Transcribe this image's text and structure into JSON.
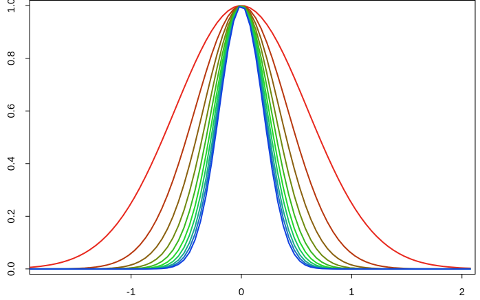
{
  "chart_data": {
    "type": "line",
    "title": "",
    "xlabel": "",
    "ylabel": "",
    "xlim": [
      -1.92,
      2.12
    ],
    "ylim": [
      -0.02,
      1.02
    ],
    "x_ticks": [
      -1,
      0,
      1,
      2
    ],
    "x_tick_labels": [
      "-1",
      "0",
      "1",
      "2"
    ],
    "y_ticks": [
      0.0,
      0.2,
      0.4,
      0.6,
      0.8,
      1.0
    ],
    "y_tick_labels": [
      "0.0",
      "0.2",
      "0.4",
      "0.6",
      "0.8",
      "1.0"
    ],
    "x_step": 0.05,
    "series": [
      {
        "sigma": 0.6,
        "color": "#e8281e"
      },
      {
        "sigma": 0.42,
        "color": "#b8380f"
      },
      {
        "sigma": 0.345,
        "color": "#8a6110"
      },
      {
        "sigma": 0.3,
        "color": "#6f8a10"
      },
      {
        "sigma": 0.27,
        "color": "#38b820"
      },
      {
        "sigma": 0.248,
        "color": "#22d82c"
      },
      {
        "sigma": 0.232,
        "color": "#18c85c"
      },
      {
        "sigma": 0.219,
        "color": "#1aa890"
      },
      {
        "sigma": 0.209,
        "color": "#1a72c0"
      },
      {
        "sigma": 0.2,
        "color": "#1040e0"
      }
    ],
    "grid": false,
    "legend": "none"
  }
}
